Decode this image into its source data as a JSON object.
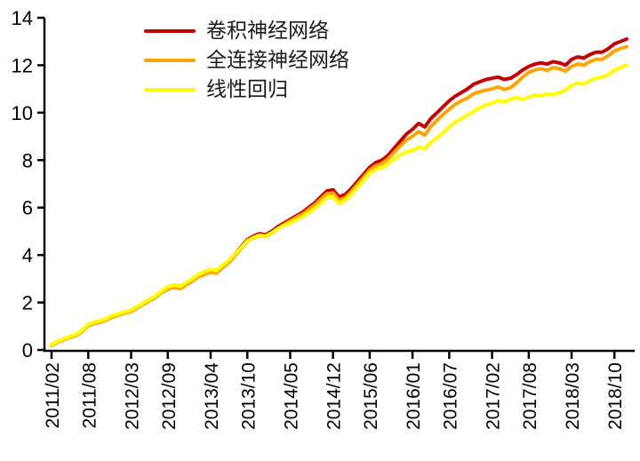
{
  "figure": {
    "background": "#FFFFFF",
    "axis_color": "#000000",
    "tick_label_color": "#000000"
  },
  "chart_data": {
    "type": "line",
    "title": "",
    "xlabel": "",
    "ylabel": "",
    "grid": false,
    "legend_position": "top-left",
    "ylim": [
      0,
      14
    ],
    "y_ticks": [
      0,
      2,
      4,
      6,
      8,
      10,
      12,
      14
    ],
    "x_start": "2011/02",
    "x_end": "2018/12",
    "x_frequency": "monthly",
    "n_points": 95,
    "x_tick_labels": [
      "2011/02",
      "2011/08",
      "2012/03",
      "2012/09",
      "2013/04",
      "2013/10",
      "2014/05",
      "2014/12",
      "2015/06",
      "2016/01",
      "2016/07",
      "2017/02",
      "2017/08",
      "2018/03",
      "2018/10"
    ],
    "x_tick_indices": [
      0,
      6,
      13,
      19,
      26,
      32,
      39,
      46,
      52,
      59,
      65,
      72,
      78,
      85,
      92
    ],
    "series": [
      {
        "name": "卷积神经网络",
        "color": "#C00000",
        "values": [
          0.2,
          0.35,
          0.45,
          0.55,
          0.62,
          0.8,
          1.05,
          1.15,
          1.2,
          1.3,
          1.42,
          1.5,
          1.58,
          1.65,
          1.8,
          1.95,
          2.1,
          2.25,
          2.45,
          2.6,
          2.7,
          2.64,
          2.8,
          2.95,
          3.15,
          3.25,
          3.35,
          3.3,
          3.55,
          3.75,
          4.05,
          4.35,
          4.65,
          4.8,
          4.9,
          4.85,
          5.0,
          5.2,
          5.35,
          5.5,
          5.65,
          5.8,
          6.0,
          6.2,
          6.45,
          6.7,
          6.75,
          6.45,
          6.55,
          6.8,
          7.1,
          7.4,
          7.7,
          7.9,
          8.0,
          8.2,
          8.5,
          8.8,
          9.1,
          9.3,
          9.55,
          9.4,
          9.75,
          10.0,
          10.25,
          10.5,
          10.7,
          10.85,
          11.0,
          11.2,
          11.3,
          11.4,
          11.45,
          11.5,
          11.4,
          11.45,
          11.6,
          11.8,
          11.95,
          12.05,
          12.1,
          12.05,
          12.15,
          12.1,
          12.0,
          12.25,
          12.35,
          12.3,
          12.45,
          12.55,
          12.55,
          12.7,
          12.9,
          13.0,
          13.1
        ]
      },
      {
        "name": "全连接神经网络",
        "color": "#FFA500",
        "values": [
          0.18,
          0.33,
          0.43,
          0.53,
          0.6,
          0.78,
          1.02,
          1.12,
          1.17,
          1.27,
          1.39,
          1.47,
          1.55,
          1.62,
          1.77,
          1.92,
          2.07,
          2.22,
          2.42,
          2.55,
          2.64,
          2.58,
          2.74,
          2.9,
          3.08,
          3.18,
          3.28,
          3.24,
          3.48,
          3.68,
          3.98,
          4.28,
          4.58,
          4.72,
          4.82,
          4.78,
          4.92,
          5.12,
          5.28,
          5.44,
          5.58,
          5.72,
          5.92,
          6.1,
          6.35,
          6.58,
          6.62,
          6.32,
          6.42,
          6.68,
          6.98,
          7.28,
          7.58,
          7.76,
          7.86,
          8.05,
          8.32,
          8.6,
          8.85,
          9.0,
          9.2,
          9.05,
          9.42,
          9.68,
          9.92,
          10.15,
          10.35,
          10.5,
          10.62,
          10.8,
          10.88,
          10.95,
          11.0,
          11.08,
          10.98,
          11.05,
          11.25,
          11.5,
          11.7,
          11.8,
          11.85,
          11.78,
          11.9,
          11.85,
          11.75,
          11.95,
          12.05,
          12.0,
          12.15,
          12.25,
          12.25,
          12.4,
          12.6,
          12.7,
          12.78
        ]
      },
      {
        "name": "线性回归",
        "color": "#FFFF00",
        "values": [
          0.22,
          0.37,
          0.47,
          0.57,
          0.65,
          0.83,
          1.08,
          1.18,
          1.23,
          1.33,
          1.45,
          1.53,
          1.6,
          1.68,
          1.83,
          1.98,
          2.13,
          2.28,
          2.48,
          2.66,
          2.74,
          2.68,
          2.84,
          3.0,
          3.18,
          3.3,
          3.4,
          3.35,
          3.58,
          3.78,
          4.05,
          4.32,
          4.6,
          4.74,
          4.84,
          4.8,
          4.94,
          5.12,
          5.25,
          5.35,
          5.48,
          5.6,
          5.78,
          5.95,
          6.18,
          6.42,
          6.45,
          6.18,
          6.3,
          6.55,
          6.85,
          7.15,
          7.45,
          7.6,
          7.68,
          7.85,
          8.05,
          8.22,
          8.35,
          8.4,
          8.55,
          8.48,
          8.75,
          8.95,
          9.15,
          9.4,
          9.6,
          9.75,
          9.9,
          10.05,
          10.2,
          10.32,
          10.4,
          10.52,
          10.45,
          10.55,
          10.65,
          10.55,
          10.65,
          10.75,
          10.7,
          10.8,
          10.75,
          10.85,
          10.95,
          11.15,
          11.25,
          11.2,
          11.35,
          11.45,
          11.5,
          11.6,
          11.8,
          11.9,
          12.0
        ]
      }
    ]
  }
}
